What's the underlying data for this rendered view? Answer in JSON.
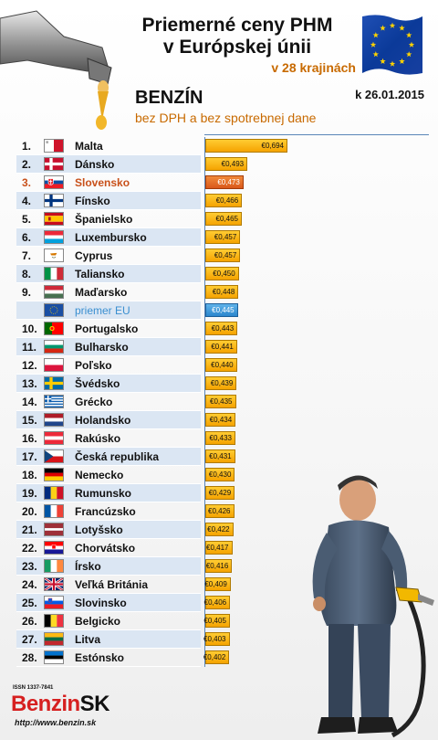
{
  "header": {
    "title_line1": "Priemerné ceny PHM",
    "title_line2": "v Európskej únii",
    "subtitle": "v 28 krajinách",
    "fuel": "BENZÍN",
    "fuel_note": "bez DPH a bez spotrebnej dane",
    "date": "k 26.01.2015"
  },
  "logo": {
    "issn": "ISSN 1337-7841",
    "name_red": "Benzin",
    "name_black": "SK",
    "url": "http://www.benzin.sk"
  },
  "colors": {
    "bar": "#f5a300",
    "highlight_bar": "#d9581a",
    "average_bar": "#2b86cc",
    "highlight_text": "#c8501a",
    "average_text": "#3a8fd0",
    "row_stripe": "#dbe6f3"
  },
  "chart_data": {
    "type": "bar",
    "orientation": "horizontal",
    "currency": "€",
    "xlim": [
      0.3,
      0.694
    ],
    "rows": [
      {
        "rank": "1.",
        "country": "Malta",
        "value": 0.694,
        "label": "€0,694",
        "flag": "malta"
      },
      {
        "rank": "2.",
        "country": "Dánsko",
        "value": 0.493,
        "label": "€0,493",
        "flag": "denmark"
      },
      {
        "rank": "3.",
        "country": "Slovensko",
        "value": 0.473,
        "label": "€0,473",
        "flag": "slovakia",
        "highlight": true
      },
      {
        "rank": "4.",
        "country": "Fínsko",
        "value": 0.466,
        "label": "€0,466",
        "flag": "finland"
      },
      {
        "rank": "5.",
        "country": "Španielsko",
        "value": 0.465,
        "label": "€0,465",
        "flag": "spain"
      },
      {
        "rank": "6.",
        "country": "Luxembursko",
        "value": 0.457,
        "label": "€0,457",
        "flag": "luxembourg"
      },
      {
        "rank": "7.",
        "country": "Cyprus",
        "value": 0.457,
        "label": "€0,457",
        "flag": "cyprus"
      },
      {
        "rank": "8.",
        "country": "Taliansko",
        "value": 0.45,
        "label": "€0,450",
        "flag": "italy"
      },
      {
        "rank": "9.",
        "country": "Maďarsko",
        "value": 0.448,
        "label": "€0,448",
        "flag": "hungary"
      },
      {
        "rank": "",
        "country": "priemer EU",
        "value": 0.445,
        "label": "€0,445",
        "flag": "eu",
        "average": true
      },
      {
        "rank": "10.",
        "country": "Portugalsko",
        "value": 0.443,
        "label": "€0,443",
        "flag": "portugal"
      },
      {
        "rank": "11.",
        "country": "Bulharsko",
        "value": 0.441,
        "label": "€0,441",
        "flag": "bulgaria"
      },
      {
        "rank": "12.",
        "country": "Poľsko",
        "value": 0.44,
        "label": "€0,440",
        "flag": "poland"
      },
      {
        "rank": "13.",
        "country": "Švédsko",
        "value": 0.439,
        "label": "€0,439",
        "flag": "sweden"
      },
      {
        "rank": "14.",
        "country": "Grécko",
        "value": 0.435,
        "label": "€0,435",
        "flag": "greece"
      },
      {
        "rank": "15.",
        "country": "Holandsko",
        "value": 0.434,
        "label": "€0,434",
        "flag": "netherlands"
      },
      {
        "rank": "16.",
        "country": "Rakúsko",
        "value": 0.433,
        "label": "€0,433",
        "flag": "austria"
      },
      {
        "rank": "17.",
        "country": "Česká republika",
        "value": 0.431,
        "label": "€0,431",
        "flag": "czech"
      },
      {
        "rank": "18.",
        "country": "Nemecko",
        "value": 0.43,
        "label": "€0,430",
        "flag": "germany"
      },
      {
        "rank": "19.",
        "country": "Rumunsko",
        "value": 0.429,
        "label": "€0,429",
        "flag": "romania"
      },
      {
        "rank": "20.",
        "country": "Francúzsko",
        "value": 0.426,
        "label": "€0,426",
        "flag": "france"
      },
      {
        "rank": "21.",
        "country": "Lotyšsko",
        "value": 0.422,
        "label": "€0,422",
        "flag": "latvia"
      },
      {
        "rank": "22.",
        "country": "Chorvátsko",
        "value": 0.417,
        "label": "€0,417",
        "flag": "croatia"
      },
      {
        "rank": "23.",
        "country": "Írsko",
        "value": 0.416,
        "label": "€0,416",
        "flag": "ireland"
      },
      {
        "rank": "24.",
        "country": "Veľká Británia",
        "value": 0.409,
        "label": "€0,409",
        "flag": "uk"
      },
      {
        "rank": "25.",
        "country": "Slovinsko",
        "value": 0.406,
        "label": "€0,406",
        "flag": "slovenia"
      },
      {
        "rank": "26.",
        "country": "Belgicko",
        "value": 0.405,
        "label": "€0,405",
        "flag": "belgium"
      },
      {
        "rank": "27.",
        "country": "Litva",
        "value": 0.403,
        "label": "€0,403",
        "flag": "lithuania"
      },
      {
        "rank": "28.",
        "country": "Estónsko",
        "value": 0.402,
        "label": "€0,402",
        "flag": "estonia"
      }
    ]
  }
}
